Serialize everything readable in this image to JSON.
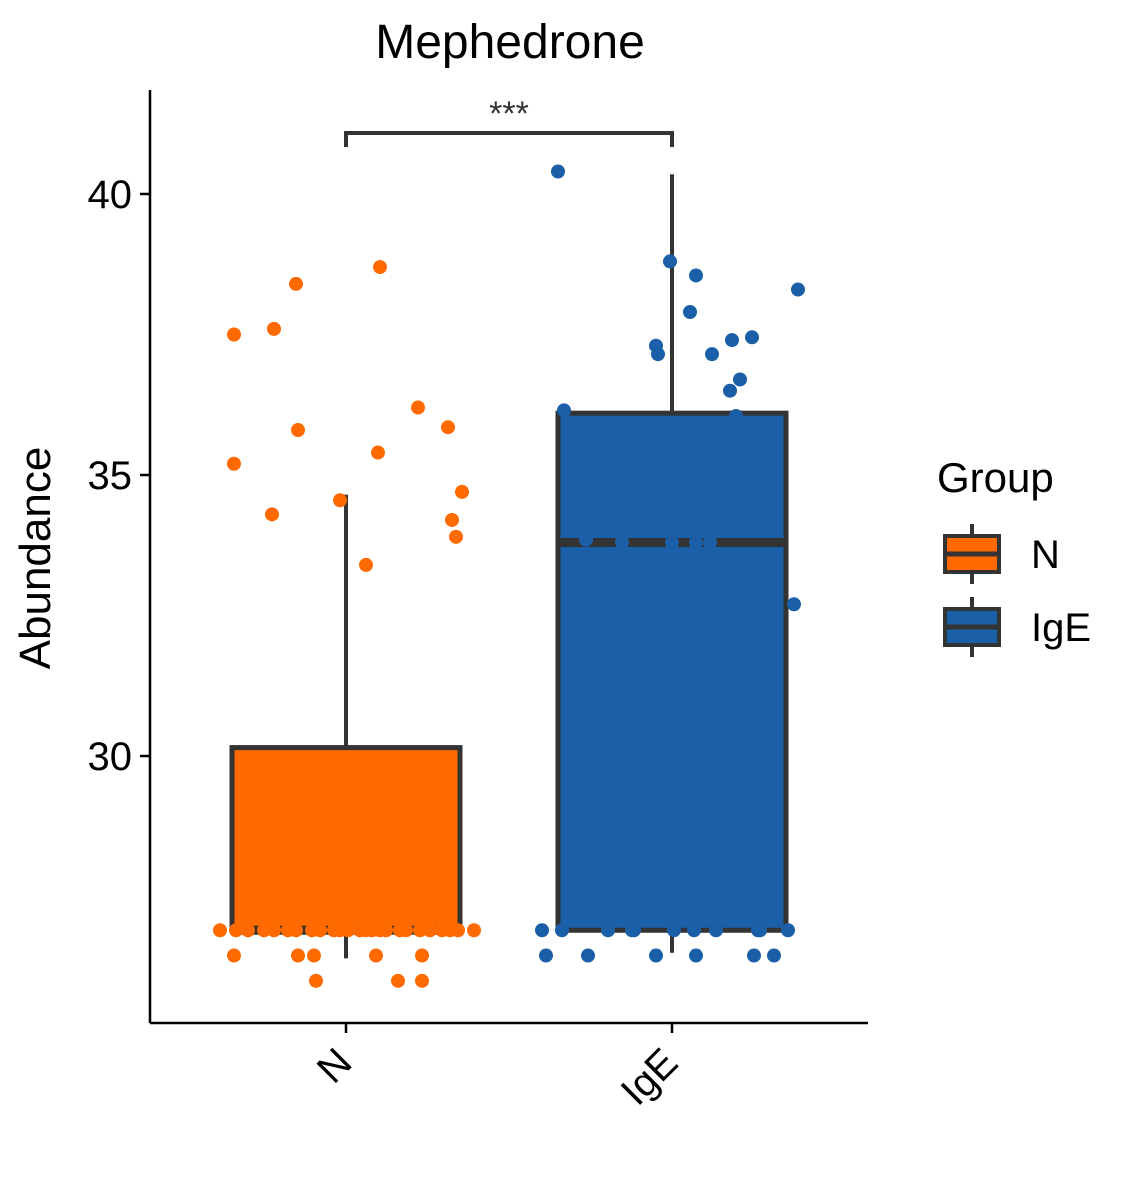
{
  "chart_data": {
    "type": "box",
    "title": "Mephedrone",
    "xlabel": "",
    "ylabel": "Abundance",
    "categories": [
      "N",
      "IgE"
    ],
    "ylim": [
      25.25,
      41.85
    ],
    "yticks": [
      30,
      35,
      40
    ],
    "grid": false,
    "legend": {
      "title": "Group",
      "position": "right",
      "entries": [
        {
          "label": "N",
          "color": "#FF6A00"
        },
        {
          "label": "IgE",
          "color": "#1A5FA8"
        }
      ]
    },
    "significance": {
      "between": [
        "N",
        "IgE"
      ],
      "label": "***"
    },
    "boxes": [
      {
        "group": "N",
        "color": "#FF6A00",
        "whisker_low": 26.4,
        "q1": 26.9,
        "median": 26.9,
        "q3": 30.15,
        "whisker_high": 34.65
      },
      {
        "group": "IgE",
        "color": "#1A5FA8",
        "whisker_low": 26.5,
        "q1": 26.9,
        "median": 33.8,
        "q3": 36.1,
        "whisker_high": 40.35
      }
    ],
    "points": [
      {
        "group": "N",
        "values": [
          37.5,
          38.7,
          38.4,
          37.6,
          35.2,
          35.8,
          34.3,
          34.55,
          33.4,
          35.4,
          36.2,
          35.85,
          34.7,
          34.2,
          33.9,
          26.9,
          26.9,
          26.9,
          26.9,
          26.9,
          26.9,
          26.9,
          26.9,
          26.9,
          26.9,
          26.9,
          26.9,
          26.9,
          26.9,
          26.9,
          26.9,
          26.9,
          26.9,
          26.9,
          26.9,
          26.9,
          26.9,
          26.9,
          26.9,
          26.9,
          26.45,
          26.45,
          26.45,
          26.45,
          26.45,
          26.0,
          26.0,
          26.0
        ]
      },
      {
        "group": "IgE",
        "values": [
          40.4,
          36.15,
          38.8,
          38.55,
          37.9,
          37.3,
          37.15,
          37.15,
          37.4,
          37.45,
          36.7,
          36.5,
          36.05,
          38.3,
          33.85,
          33.8,
          33.8,
          33.8,
          33.8,
          32.7,
          26.9,
          26.9,
          26.9,
          26.9,
          26.9,
          26.9,
          26.9,
          26.9,
          26.9,
          26.9,
          26.9,
          26.45,
          26.45,
          26.45,
          26.45,
          26.45,
          26.45
        ]
      }
    ]
  }
}
